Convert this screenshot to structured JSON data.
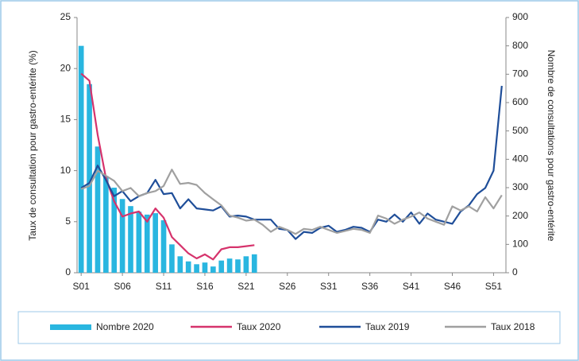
{
  "chart_data": {
    "type": "bar-line",
    "categories": [
      "S01",
      null,
      null,
      null,
      null,
      "S06",
      null,
      null,
      null,
      null,
      "S11",
      null,
      null,
      null,
      null,
      "S16",
      null,
      null,
      null,
      null,
      "S21",
      null,
      null,
      null,
      null,
      "S26",
      null,
      null,
      null,
      null,
      "S31",
      null,
      null,
      null,
      null,
      "S36",
      null,
      null,
      null,
      null,
      "S41",
      null,
      null,
      null,
      null,
      "S46",
      null,
      null,
      null,
      null,
      "S51",
      null
    ],
    "ylabel": "Taux de consultation pour gastro-entérite (%)",
    "y2label": "Nombre de consultations pour gastro-entérite",
    "ylim": [
      0,
      25
    ],
    "yticks": [
      0,
      5,
      10,
      15,
      20,
      25
    ],
    "y2lim": [
      0,
      900
    ],
    "y2ticks": [
      0,
      100,
      200,
      300,
      400,
      500,
      600,
      700,
      800,
      900
    ],
    "series": [
      {
        "name": "Nombre 2020",
        "type": "bar",
        "axis": "y2",
        "color": "#29b6e0",
        "values": [
          800,
          665,
          445,
          340,
          300,
          260,
          235,
          215,
          205,
          210,
          185,
          100,
          58,
          40,
          30,
          36,
          22,
          43,
          50,
          47,
          58,
          65,
          null,
          null,
          null,
          null,
          null,
          null,
          null,
          null,
          null,
          null,
          null,
          null,
          null,
          null,
          null,
          null,
          null,
          null,
          null,
          null,
          null,
          null,
          null,
          null,
          null,
          null,
          null,
          null,
          null,
          null
        ]
      },
      {
        "name": "Taux 2020",
        "type": "line",
        "color": "#d6336c",
        "values": [
          19.5,
          18.8,
          13.5,
          9.3,
          7.0,
          5.5,
          5.8,
          6.0,
          5.0,
          6.3,
          5.4,
          3.5,
          2.7,
          1.9,
          1.4,
          1.8,
          1.3,
          2.3,
          2.5,
          2.5,
          2.6,
          2.7,
          null,
          null,
          null,
          null,
          null,
          null,
          null,
          null,
          null,
          null,
          null,
          null,
          null,
          null,
          null,
          null,
          null,
          null,
          null,
          null,
          null,
          null,
          null,
          null,
          null,
          null,
          null,
          null,
          null,
          null
        ]
      },
      {
        "name": "Taux 2019",
        "type": "line",
        "color": "#1f4e99",
        "values": [
          8.3,
          8.8,
          10.5,
          9.1,
          7.5,
          8.0,
          7.0,
          7.5,
          7.8,
          9.1,
          7.7,
          7.8,
          6.3,
          7.2,
          6.3,
          6.2,
          6.1,
          6.5,
          5.5,
          5.6,
          5.5,
          5.2,
          5.2,
          5.2,
          4.3,
          4.2,
          3.3,
          4.0,
          3.9,
          4.4,
          4.6,
          4.0,
          4.2,
          4.5,
          4.4,
          4.0,
          5.2,
          5.0,
          5.7,
          5.0,
          5.9,
          4.8,
          5.8,
          5.2,
          5.0,
          4.8,
          6.0,
          6.6,
          7.7,
          8.3,
          10.0,
          18.3
        ]
      },
      {
        "name": "Taux 2018",
        "type": "line",
        "color": "#a0a0a0",
        "values": [
          8.2,
          8.5,
          10.0,
          9.5,
          9.0,
          8.0,
          8.3,
          7.5,
          7.8,
          8.0,
          8.5,
          10.1,
          8.7,
          8.8,
          8.6,
          7.8,
          7.2,
          6.6,
          5.6,
          5.4,
          5.1,
          5.2,
          4.7,
          4.0,
          4.5,
          4.2,
          3.8,
          4.3,
          4.2,
          4.5,
          4.2,
          3.9,
          4.1,
          4.3,
          4.2,
          3.9,
          5.6,
          5.3,
          4.8,
          5.2,
          5.5,
          5.9,
          5.3,
          5.0,
          4.7,
          6.5,
          6.1,
          6.5,
          6.0,
          7.4,
          6.3,
          7.6
        ]
      }
    ]
  }
}
